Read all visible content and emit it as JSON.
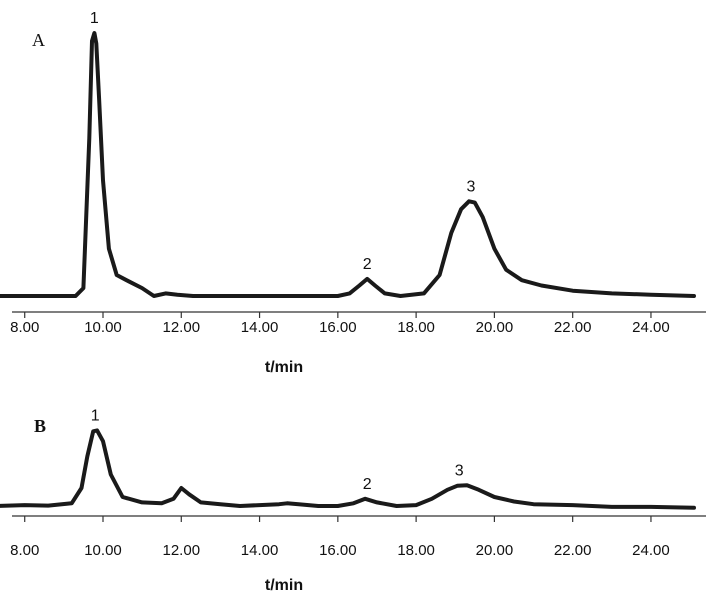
{
  "chart_data": [
    {
      "type": "line",
      "panel_label": "A",
      "xlabel": "t/min",
      "ylabel": "",
      "xlim": [
        7.3,
        25.1
      ],
      "x_ticks": [
        8,
        10,
        12,
        14,
        16,
        18,
        20,
        22,
        24
      ],
      "x_tick_labels": [
        "8.00",
        "10.00",
        "12.00",
        "14.00",
        "16.00",
        "18.00",
        "20.00",
        "22.00",
        "24.00"
      ],
      "ylim": [
        0,
        1.0
      ],
      "series": [
        {
          "x": [
            7.3,
            9.3,
            9.5,
            9.65,
            9.72,
            9.78,
            9.83,
            9.9,
            10.0,
            10.15,
            10.35,
            10.6,
            11.0,
            11.3,
            11.6,
            11.9,
            12.3,
            14.0,
            16.0,
            16.3,
            16.55,
            16.75,
            16.95,
            17.2,
            17.6,
            18.2,
            18.6,
            18.9,
            19.15,
            19.35,
            19.5,
            19.7,
            20.0,
            20.3,
            20.7,
            21.2,
            22.0,
            23.0,
            24.0,
            25.1
          ],
          "y": [
            0.0,
            0.0,
            0.03,
            0.6,
            0.97,
            1.0,
            0.96,
            0.75,
            0.44,
            0.18,
            0.08,
            0.06,
            0.03,
            0.0,
            0.01,
            0.005,
            0.0,
            0.0,
            0.0,
            0.01,
            0.04,
            0.065,
            0.04,
            0.01,
            0.0,
            0.01,
            0.08,
            0.24,
            0.33,
            0.36,
            0.355,
            0.3,
            0.18,
            0.1,
            0.06,
            0.04,
            0.02,
            0.01,
            0.005,
            0.0
          ]
        }
      ],
      "annotations": [
        {
          "text": "1",
          "x": 9.78,
          "y": 1.0
        },
        {
          "text": "2",
          "x": 16.75,
          "y": 0.065
        },
        {
          "text": "3",
          "x": 19.4,
          "y": 0.36
        }
      ]
    },
    {
      "type": "line",
      "panel_label": "B",
      "xlabel": "t/min",
      "ylabel": "",
      "xlim": [
        7.3,
        25.1
      ],
      "x_ticks": [
        8,
        10,
        12,
        14,
        16,
        18,
        20,
        22,
        24
      ],
      "x_tick_labels": [
        "8.00",
        "10.00",
        "12.00",
        "14.00",
        "16.00",
        "18.00",
        "20.00",
        "22.00",
        "24.00"
      ],
      "ylim": [
        0,
        1.0
      ],
      "series": [
        {
          "x": [
            7.3,
            8.0,
            8.6,
            9.2,
            9.45,
            9.6,
            9.75,
            9.85,
            10.0,
            10.2,
            10.5,
            11.0,
            11.5,
            11.8,
            12.0,
            12.2,
            12.5,
            13.0,
            13.5,
            14.0,
            14.5,
            14.7,
            15.0,
            15.5,
            16.0,
            16.4,
            16.7,
            17.0,
            17.5,
            18.0,
            18.4,
            18.8,
            19.05,
            19.3,
            19.6,
            20.0,
            20.5,
            21.0,
            22.0,
            23.0,
            24.0,
            25.1
          ],
          "y": [
            0.0,
            0.01,
            0.005,
            0.03,
            0.2,
            0.55,
            0.83,
            0.84,
            0.72,
            0.35,
            0.1,
            0.04,
            0.03,
            0.08,
            0.2,
            0.13,
            0.04,
            0.02,
            0.0,
            0.01,
            0.02,
            0.03,
            0.02,
            0.0,
            0.0,
            0.03,
            0.08,
            0.04,
            0.0,
            0.01,
            0.08,
            0.18,
            0.225,
            0.23,
            0.18,
            0.1,
            0.05,
            0.02,
            0.01,
            -0.01,
            -0.01,
            -0.02
          ]
        }
      ],
      "annotations": [
        {
          "text": "1",
          "x": 9.8,
          "y": 0.84
        },
        {
          "text": "2",
          "x": 16.75,
          "y": 0.08
        },
        {
          "text": "3",
          "x": 19.1,
          "y": 0.23
        }
      ]
    }
  ]
}
